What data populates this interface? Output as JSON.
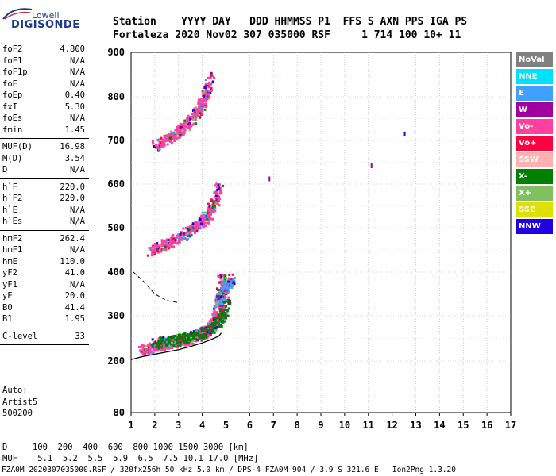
{
  "logo": {
    "top": "Lowell",
    "bottom": "DIGISONDE"
  },
  "header": {
    "line1": "Station    YYYY DAY   DDD HHMMSS P1  FFS S AXN PPS IGA PS",
    "line2": "Fortaleza 2020 Nov02 307 035000 RSF     1 714 100 10+ 11"
  },
  "params": [
    {
      "label": "foF2",
      "value": "4.800"
    },
    {
      "label": "foF1",
      "value": "N/A"
    },
    {
      "label": "foF1p",
      "value": "N/A"
    },
    {
      "label": "foE",
      "value": "N/A"
    },
    {
      "label": "foEp",
      "value": "0.40"
    },
    {
      "label": "fxI",
      "value": "5.30"
    },
    {
      "label": "foEs",
      "value": "N/A"
    },
    {
      "label": "fmin",
      "value": "1.45"
    },
    {
      "sep": true
    },
    {
      "label": "MUF(D)",
      "value": "16.98"
    },
    {
      "label": "M(D)",
      "value": "3.54"
    },
    {
      "label": "D",
      "value": "N/A"
    },
    {
      "sep": true
    },
    {
      "label": "h`F",
      "value": "220.0"
    },
    {
      "label": "h`F2",
      "value": "220.0"
    },
    {
      "label": "h`E",
      "value": "N/A"
    },
    {
      "label": "h`Es",
      "value": "N/A"
    },
    {
      "sep": true
    },
    {
      "label": "hmF2",
      "value": "262.4"
    },
    {
      "label": "hmF1",
      "value": "N/A"
    },
    {
      "label": "hmE",
      "value": "110.0"
    },
    {
      "label": "yF2",
      "value": "41.0"
    },
    {
      "label": "yF1",
      "value": "N/A"
    },
    {
      "label": "yE",
      "value": "20.0"
    },
    {
      "label": "B0",
      "value": "41.4"
    },
    {
      "label": "B1",
      "value": "1.95"
    },
    {
      "sep": true
    },
    {
      "label": "C-level",
      "value": "33"
    },
    {
      "sep": true
    }
  ],
  "auto": {
    "line1": "Auto:",
    "line2": "Artist5",
    "line3": "500200"
  },
  "bottom": {
    "d_line": "D     100  200  400  600  800 1000 1500 3000 [km]",
    "muf_line": "MUF    5.1  5.2  5.5  5.9  6.5  7.5 10.1 17.0 [MHz]",
    "footer": "FZA0M_2020307035000.RSF / 320fx256h 50 kHz 5.0 km / DPS-4 FZA0M 904 / 3.9 S 321.6 E   Ion2Png 1.3.20"
  },
  "chart_data": {
    "type": "scatter",
    "title": "",
    "xlabel": "",
    "ylabel": "",
    "xlim": [
      1,
      17
    ],
    "ylim": [
      80,
      900
    ],
    "x_ticks": [
      1,
      2,
      3,
      4,
      5,
      6,
      7,
      8,
      9,
      10,
      11,
      12,
      13,
      14,
      15,
      16,
      17
    ],
    "y_ticks": [
      80,
      200,
      300,
      400,
      500,
      600,
      700,
      800,
      900
    ],
    "grid": true,
    "legend_position": "right",
    "legend": [
      {
        "name": "NoVal",
        "color": "#808080"
      },
      {
        "name": "NNE",
        "color": "#00e0ff"
      },
      {
        "name": "E",
        "color": "#40a0ff"
      },
      {
        "name": "W",
        "color": "#a000a0"
      },
      {
        "name": "Vo-",
        "color": "#ff40a0"
      },
      {
        "name": "Vo+",
        "color": "#ff0040"
      },
      {
        "name": "SSW",
        "color": "#ffb0b0"
      },
      {
        "name": "X-",
        "color": "#008000"
      },
      {
        "name": "X+",
        "color": "#80c060"
      },
      {
        "name": "SSE",
        "color": "#e0e000"
      },
      {
        "name": "NNW",
        "color": "#2000e0"
      }
    ],
    "traces": [
      {
        "name": "F2 O-trace",
        "color": "#ff40a0",
        "x": [
          1.45,
          2.0,
          2.5,
          3.0,
          3.5,
          4.0,
          4.3,
          4.5,
          4.7,
          4.8
        ],
        "y": [
          225,
          235,
          240,
          245,
          252,
          262,
          275,
          295,
          330,
          400
        ]
      },
      {
        "name": "F2 X-trace",
        "color": "#008000",
        "x": [
          2.0,
          2.5,
          3.0,
          3.5,
          4.0,
          4.5,
          4.8,
          5.0
        ],
        "y": [
          240,
          245,
          250,
          255,
          265,
          280,
          300,
          340
        ]
      },
      {
        "name": "2F echo",
        "color": "#ff40a0",
        "x": [
          1.8,
          2.3,
          2.8,
          3.3,
          3.8,
          4.2,
          4.5,
          4.7
        ],
        "y": [
          450,
          462,
          475,
          490,
          508,
          530,
          560,
          600
        ]
      },
      {
        "name": "3F echo",
        "color": "#ff40a0",
        "x": [
          2.0,
          2.5,
          3.0,
          3.4,
          3.8,
          4.1,
          4.3
        ],
        "y": [
          690,
          705,
          722,
          745,
          770,
          800,
          850
        ]
      },
      {
        "name": "E echo",
        "color": "#40a0ff",
        "x": [
          4.6,
          4.8,
          5.0,
          5.2
        ],
        "y": [
          330,
          350,
          370,
          390
        ]
      }
    ],
    "profile_solid": {
      "x": [
        1.0,
        1.5,
        2.0,
        2.5,
        3.0,
        3.5,
        4.0,
        4.4,
        4.7,
        4.8
      ],
      "y": [
        203,
        210,
        215,
        220,
        225,
        232,
        240,
        248,
        255,
        262
      ]
    },
    "profile_dashed": {
      "x": [
        1.1,
        1.5,
        2.0,
        2.5,
        3.0
      ],
      "y": [
        400,
        380,
        350,
        335,
        330
      ]
    },
    "isolated_points": [
      {
        "x": 6.8,
        "y": 610,
        "color": "#a000a0"
      },
      {
        "x": 11.1,
        "y": 640,
        "color": "#a000a0"
      },
      {
        "x": 12.5,
        "y": 713,
        "color": "#2000e0"
      }
    ]
  }
}
